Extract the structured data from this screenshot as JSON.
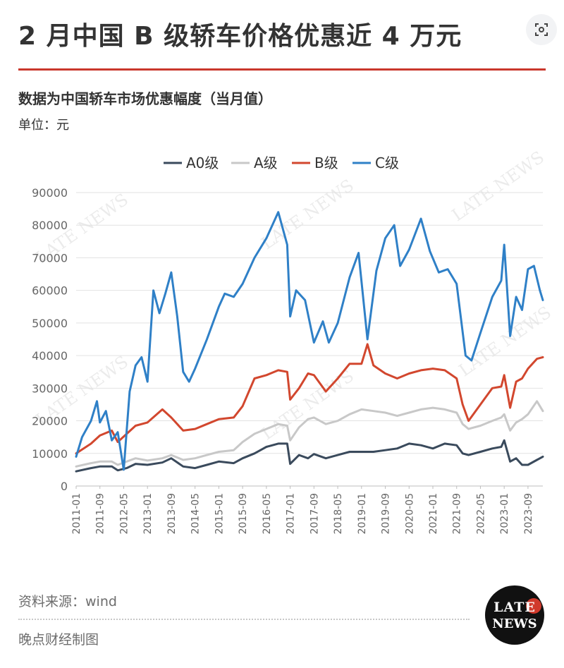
{
  "header": {
    "title": "2 月中国 B 级轿车价格优惠近 4 万元",
    "subtitle": "数据为中国轿车市场优惠幅度（当月值）",
    "unit": "单位：元"
  },
  "footer": {
    "source": "资料来源：wind",
    "credit": "晚点财经制图"
  },
  "logo": {
    "line1": "LATE",
    "line2": "NEWS"
  },
  "watermark": "LATE NEWS",
  "chart_data": {
    "type": "line",
    "ylim": [
      0,
      90000
    ],
    "yticks": [
      0,
      10000,
      20000,
      30000,
      40000,
      50000,
      60000,
      70000,
      80000,
      90000
    ],
    "xticks": [
      "2011-01",
      "2011-09",
      "2012-05",
      "2013-01",
      "2013-09",
      "2014-05",
      "2015-01",
      "2015-09",
      "2016-05",
      "2017-01",
      "2017-09",
      "2018-05",
      "2019-01",
      "2019-09",
      "2020-05",
      "2021-01",
      "2021-09",
      "2022-05",
      "2023-01",
      "2023-09"
    ],
    "x_start": "2011-01",
    "x_end": "2024-02",
    "grid": true,
    "legend_position": "top",
    "series": [
      {
        "name": "A0级",
        "color": "#3a4a5c",
        "points": [
          [
            "2011-01",
            4500
          ],
          [
            "2011-06",
            5500
          ],
          [
            "2011-09",
            6000
          ],
          [
            "2012-01",
            6000
          ],
          [
            "2012-03",
            4800
          ],
          [
            "2012-06",
            5500
          ],
          [
            "2012-09",
            6800
          ],
          [
            "2013-01",
            6500
          ],
          [
            "2013-06",
            7200
          ],
          [
            "2013-09",
            8500
          ],
          [
            "2014-01",
            6000
          ],
          [
            "2014-05",
            5500
          ],
          [
            "2014-09",
            6500
          ],
          [
            "2015-01",
            7500
          ],
          [
            "2015-06",
            7000
          ],
          [
            "2015-09",
            8500
          ],
          [
            "2016-01",
            10000
          ],
          [
            "2016-05",
            12000
          ],
          [
            "2016-09",
            13000
          ],
          [
            "2016-12",
            13000
          ],
          [
            "2017-01",
            6800
          ],
          [
            "2017-04",
            9500
          ],
          [
            "2017-07",
            8500
          ],
          [
            "2017-09",
            9800
          ],
          [
            "2018-01",
            8500
          ],
          [
            "2018-05",
            9500
          ],
          [
            "2018-09",
            10500
          ],
          [
            "2019-01",
            10500
          ],
          [
            "2019-05",
            10500
          ],
          [
            "2019-09",
            11000
          ],
          [
            "2020-01",
            11500
          ],
          [
            "2020-05",
            13000
          ],
          [
            "2020-09",
            12500
          ],
          [
            "2021-01",
            11500
          ],
          [
            "2021-05",
            13000
          ],
          [
            "2021-09",
            12500
          ],
          [
            "2021-11",
            10000
          ],
          [
            "2022-01",
            9500
          ],
          [
            "2022-05",
            10500
          ],
          [
            "2022-09",
            11500
          ],
          [
            "2022-12",
            12000
          ],
          [
            "2023-01",
            14000
          ],
          [
            "2023-03",
            7500
          ],
          [
            "2023-05",
            8500
          ],
          [
            "2023-07",
            6500
          ],
          [
            "2023-09",
            6500
          ],
          [
            "2023-12",
            8000
          ],
          [
            "2024-02",
            9000
          ]
        ]
      },
      {
        "name": "A级",
        "color": "#c8c8c8",
        "points": [
          [
            "2011-01",
            6000
          ],
          [
            "2011-06",
            7000
          ],
          [
            "2011-09",
            7500
          ],
          [
            "2012-01",
            7500
          ],
          [
            "2012-03",
            6500
          ],
          [
            "2012-06",
            7500
          ],
          [
            "2012-09",
            8500
          ],
          [
            "2013-01",
            7800
          ],
          [
            "2013-06",
            8500
          ],
          [
            "2013-09",
            9500
          ],
          [
            "2014-01",
            8000
          ],
          [
            "2014-05",
            8500
          ],
          [
            "2014-09",
            9500
          ],
          [
            "2015-01",
            10500
          ],
          [
            "2015-06",
            11000
          ],
          [
            "2015-09",
            13500
          ],
          [
            "2016-01",
            16000
          ],
          [
            "2016-05",
            17500
          ],
          [
            "2016-09",
            19000
          ],
          [
            "2016-12",
            18500
          ],
          [
            "2017-01",
            14000
          ],
          [
            "2017-04",
            18000
          ],
          [
            "2017-07",
            20500
          ],
          [
            "2017-09",
            21000
          ],
          [
            "2018-01",
            19000
          ],
          [
            "2018-05",
            20000
          ],
          [
            "2018-09",
            22000
          ],
          [
            "2019-01",
            23500
          ],
          [
            "2019-05",
            23000
          ],
          [
            "2019-09",
            22500
          ],
          [
            "2020-01",
            21500
          ],
          [
            "2020-05",
            22500
          ],
          [
            "2020-09",
            23500
          ],
          [
            "2021-01",
            24000
          ],
          [
            "2021-05",
            23500
          ],
          [
            "2021-09",
            22500
          ],
          [
            "2021-11",
            19000
          ],
          [
            "2022-01",
            17500
          ],
          [
            "2022-05",
            18500
          ],
          [
            "2022-09",
            20000
          ],
          [
            "2022-12",
            21000
          ],
          [
            "2023-01",
            22000
          ],
          [
            "2023-03",
            17000
          ],
          [
            "2023-05",
            19500
          ],
          [
            "2023-07",
            20500
          ],
          [
            "2023-09",
            22000
          ],
          [
            "2023-12",
            26000
          ],
          [
            "2024-02",
            23000
          ]
        ]
      },
      {
        "name": "B级",
        "color": "#d2472e",
        "points": [
          [
            "2011-01",
            10000
          ],
          [
            "2011-06",
            13000
          ],
          [
            "2011-09",
            15500
          ],
          [
            "2012-01",
            17000
          ],
          [
            "2012-03",
            13500
          ],
          [
            "2012-06",
            16000
          ],
          [
            "2012-09",
            18500
          ],
          [
            "2013-01",
            19500
          ],
          [
            "2013-06",
            23500
          ],
          [
            "2013-09",
            21000
          ],
          [
            "2014-01",
            17000
          ],
          [
            "2014-05",
            17500
          ],
          [
            "2014-09",
            19000
          ],
          [
            "2015-01",
            20500
          ],
          [
            "2015-06",
            21000
          ],
          [
            "2015-09",
            24500
          ],
          [
            "2016-01",
            33000
          ],
          [
            "2016-05",
            34000
          ],
          [
            "2016-09",
            35500
          ],
          [
            "2016-12",
            35000
          ],
          [
            "2017-01",
            26500
          ],
          [
            "2017-04",
            30000
          ],
          [
            "2017-07",
            34500
          ],
          [
            "2017-09",
            34000
          ],
          [
            "2018-01",
            29000
          ],
          [
            "2018-05",
            33000
          ],
          [
            "2018-09",
            37500
          ],
          [
            "2019-01",
            37500
          ],
          [
            "2019-03",
            43500
          ],
          [
            "2019-05",
            37000
          ],
          [
            "2019-09",
            34500
          ],
          [
            "2020-01",
            33000
          ],
          [
            "2020-05",
            34500
          ],
          [
            "2020-09",
            35500
          ],
          [
            "2021-01",
            36000
          ],
          [
            "2021-05",
            35500
          ],
          [
            "2021-09",
            33000
          ],
          [
            "2021-11",
            25000
          ],
          [
            "2022-01",
            20000
          ],
          [
            "2022-05",
            25000
          ],
          [
            "2022-09",
            30000
          ],
          [
            "2022-12",
            30500
          ],
          [
            "2023-01",
            34000
          ],
          [
            "2023-03",
            24000
          ],
          [
            "2023-05",
            32000
          ],
          [
            "2023-07",
            33000
          ],
          [
            "2023-09",
            36000
          ],
          [
            "2023-12",
            39000
          ],
          [
            "2024-02",
            39500
          ]
        ]
      },
      {
        "name": "C级",
        "color": "#2f80c7",
        "points": [
          [
            "2011-01",
            9000
          ],
          [
            "2011-03",
            15000
          ],
          [
            "2011-06",
            20000
          ],
          [
            "2011-08",
            26000
          ],
          [
            "2011-09",
            19500
          ],
          [
            "2011-11",
            23000
          ],
          [
            "2012-01",
            14000
          ],
          [
            "2012-03",
            16500
          ],
          [
            "2012-05",
            5000
          ],
          [
            "2012-07",
            29000
          ],
          [
            "2012-09",
            37000
          ],
          [
            "2012-11",
            39500
          ],
          [
            "2013-01",
            32000
          ],
          [
            "2013-03",
            60000
          ],
          [
            "2013-05",
            53000
          ],
          [
            "2013-07",
            59000
          ],
          [
            "2013-09",
            65500
          ],
          [
            "2013-11",
            52000
          ],
          [
            "2014-01",
            35000
          ],
          [
            "2014-03",
            32000
          ],
          [
            "2014-05",
            36000
          ],
          [
            "2014-09",
            45000
          ],
          [
            "2015-01",
            55000
          ],
          [
            "2015-03",
            59000
          ],
          [
            "2015-06",
            58000
          ],
          [
            "2015-09",
            62000
          ],
          [
            "2016-01",
            70000
          ],
          [
            "2016-05",
            76000
          ],
          [
            "2016-09",
            84000
          ],
          [
            "2016-12",
            74000
          ],
          [
            "2017-01",
            52000
          ],
          [
            "2017-03",
            60000
          ],
          [
            "2017-06",
            57000
          ],
          [
            "2017-09",
            44000
          ],
          [
            "2017-12",
            50500
          ],
          [
            "2018-02",
            44000
          ],
          [
            "2018-05",
            50000
          ],
          [
            "2018-09",
            64000
          ],
          [
            "2018-12",
            71500
          ],
          [
            "2019-03",
            45000
          ],
          [
            "2019-06",
            66000
          ],
          [
            "2019-09",
            76000
          ],
          [
            "2019-12",
            80000
          ],
          [
            "2020-02",
            67500
          ],
          [
            "2020-05",
            72500
          ],
          [
            "2020-09",
            82000
          ],
          [
            "2020-12",
            72000
          ],
          [
            "2021-03",
            65500
          ],
          [
            "2021-06",
            66500
          ],
          [
            "2021-09",
            62000
          ],
          [
            "2021-12",
            40000
          ],
          [
            "2022-02",
            38500
          ],
          [
            "2022-05",
            47000
          ],
          [
            "2022-09",
            58000
          ],
          [
            "2022-12",
            63000
          ],
          [
            "2023-01",
            74000
          ],
          [
            "2023-03",
            46000
          ],
          [
            "2023-05",
            58000
          ],
          [
            "2023-07",
            54000
          ],
          [
            "2023-09",
            66500
          ],
          [
            "2023-11",
            67500
          ],
          [
            "2024-01",
            60000
          ],
          [
            "2024-02",
            57000
          ]
        ]
      }
    ]
  }
}
